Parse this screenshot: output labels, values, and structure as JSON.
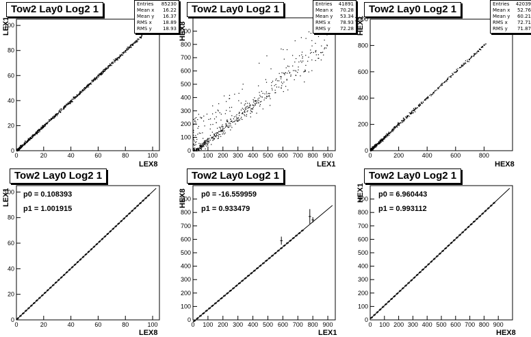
{
  "chart_data": [
    {
      "type": "scatter",
      "title": "Tow2 Lay0 Log2 1",
      "xlabel": "LEX8",
      "ylabel": "LEX1",
      "xlim": [
        0,
        105
      ],
      "ylim": [
        0,
        105
      ],
      "xticks": [
        0,
        20,
        40,
        60,
        80,
        100
      ],
      "yticks": [
        0,
        20,
        40,
        60,
        80,
        100
      ],
      "stats": [
        [
          "Entries",
          "85230"
        ],
        [
          "Mean x",
          "16.22"
        ],
        [
          "Mean y",
          "16.37"
        ],
        [
          "RMS x",
          "18.89"
        ],
        [
          "RMS y",
          "18.93"
        ]
      ],
      "relation": {
        "slope": 1.0,
        "intercept": 0.1,
        "x_from": 0,
        "x_to": 92
      }
    },
    {
      "type": "scatter",
      "title": "Tow2 Lay0 Log2 1",
      "xlabel": "LEX1",
      "ylabel": "HEX8",
      "xlim": [
        0,
        950
      ],
      "ylim": [
        0,
        1000
      ],
      "xticks": [
        0,
        100,
        200,
        300,
        400,
        500,
        600,
        700,
        800,
        900
      ],
      "yticks": [
        0,
        100,
        200,
        300,
        400,
        500,
        600,
        700,
        800,
        900
      ],
      "stats": [
        [
          "Entries",
          "41891"
        ],
        [
          "Mean x",
          "70.28"
        ],
        [
          "Mean y",
          "53.34"
        ],
        [
          "RMS x",
          "78.93"
        ],
        [
          "RMS y",
          "72.28"
        ]
      ],
      "relation": {
        "slope": 0.9,
        "intercept": -15,
        "x_from": 0,
        "x_to": 900
      }
    },
    {
      "type": "scatter",
      "title": "Tow2 Lay0 Log2 1",
      "xlabel": "HEX8",
      "ylabel": "HEX1",
      "xlim": [
        0,
        1000
      ],
      "ylim": [
        0,
        1000
      ],
      "xticks": [
        0,
        200,
        400,
        600,
        800
      ],
      "yticks": [
        0,
        200,
        400,
        600,
        800,
        1000
      ],
      "stats": [
        [
          "Entries",
          "42039"
        ],
        [
          "Mean x",
          "52.76"
        ],
        [
          "Mean y",
          "60.21"
        ],
        [
          "RMS x",
          "72.71"
        ],
        [
          "RMS y",
          "71.87"
        ]
      ],
      "relation": {
        "slope": 1.0,
        "intercept": 5,
        "x_from": 0,
        "x_to": 820
      }
    },
    {
      "type": "line",
      "title": "Tow2 Lay0 Log2 1",
      "xlabel": "LEX8",
      "ylabel": "LEX1",
      "xlim": [
        0,
        105
      ],
      "ylim": [
        0,
        105
      ],
      "xticks": [
        0,
        20,
        40,
        60,
        80,
        100
      ],
      "yticks": [
        0,
        20,
        40,
        60,
        80,
        100
      ],
      "fit": {
        "p0_label": "p0 = 0.108393",
        "p1_label": "p1 = 1.001915",
        "p0": 0.108393,
        "p1": 1.001915
      },
      "points": {
        "x_start": 1,
        "x_end": 97,
        "step": 2
      }
    },
    {
      "type": "line",
      "title": "Tow2 Lay0 Log2 1",
      "xlabel": "LEX1",
      "ylabel": "HEX8",
      "xlim": [
        0,
        950
      ],
      "ylim": [
        0,
        1000
      ],
      "xticks": [
        0,
        100,
        200,
        300,
        400,
        500,
        600,
        700,
        800,
        900
      ],
      "yticks": [
        0,
        100,
        200,
        300,
        400,
        500,
        600,
        700,
        800,
        900
      ],
      "fit": {
        "p0_label": "p0 = -16.559959",
        "p1_label": "p1 = 0.933479",
        "p0": -16.559959,
        "p1": 0.933479
      },
      "points": {
        "x_start": 10,
        "x_end": 730,
        "step": 20
      },
      "extra_points": [
        [
          590,
          590,
          30
        ],
        [
          780,
          770,
          55
        ],
        [
          800,
          745,
          20
        ]
      ]
    },
    {
      "type": "line",
      "title": "Tow2 Lay0 Log2 1",
      "xlabel": "HEX8",
      "ylabel": "HEX1",
      "xlim": [
        0,
        1000
      ],
      "ylim": [
        0,
        1000
      ],
      "xticks": [
        0,
        100,
        200,
        300,
        400,
        500,
        600,
        700,
        800,
        900
      ],
      "yticks": [
        0,
        100,
        200,
        300,
        400,
        500,
        600,
        700,
        800,
        900
      ],
      "fit": {
        "p0_label": "p0 = 6.960443",
        "p1_label": "p1 = 0.993112",
        "p0": 6.960443,
        "p1": 0.993112
      },
      "points": {
        "x_start": 10,
        "x_end": 870,
        "step": 20
      }
    }
  ]
}
